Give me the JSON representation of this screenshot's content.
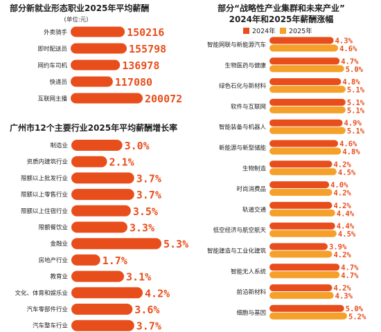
{
  "colors": {
    "primary": "#e84e1b",
    "secondary": "#f5a02a",
    "value": "#e84e1b"
  },
  "chart_data": [
    {
      "type": "bar",
      "orientation": "horizontal",
      "title": "部分新就业形态职业2025年平均薪酬",
      "unit_label": "(单位:元)",
      "categories": [
        "外卖骑手",
        "即时配送员",
        "网约车司机",
        "快递员",
        "互联网主播"
      ],
      "values": [
        150216,
        155798,
        136978,
        117080,
        200072
      ],
      "value_labels": [
        "150216",
        "155798",
        "136978",
        "117080",
        "200072"
      ]
    },
    {
      "type": "bar",
      "orientation": "horizontal",
      "title": "广州市12个主要行业2025年平均薪酬增长率",
      "categories": [
        "制造业",
        "资质内建筑行业",
        "限额以上批发行业",
        "限额以上零售行业",
        "限额以上住宿行业",
        "限额餐饮业",
        "金融业",
        "房地产行业",
        "教育业",
        "文化、体育和娱乐业",
        "汽车零部件行业",
        "汽车整车行业"
      ],
      "values": [
        3.0,
        2.1,
        3.7,
        3.7,
        3.5,
        3.3,
        5.3,
        1.7,
        3.1,
        4.2,
        3.6,
        3.7
      ],
      "value_labels": [
        "3.0%",
        "2.1%",
        "3.7%",
        "3.7%",
        "3.5%",
        "3.3%",
        "5.3%",
        "1.7%",
        "3.1%",
        "4.2%",
        "3.6%",
        "3.7%"
      ]
    },
    {
      "type": "bar",
      "orientation": "horizontal",
      "title": "部分“战略性产业集群和未来产业”",
      "subtitle": "2024年和2025年薪酬涨幅",
      "categories": [
        "智能网联与新能源汽车",
        "生物医药与健康",
        "绿色石化与新材料",
        "软件与互联网",
        "智能装备与机器人",
        "新能源与新型储能",
        "生物制造",
        "时尚消费品",
        "轨道交通",
        "低空经济与航空航天",
        "智能建造与工业化建筑",
        "智能无人系统",
        "前沿新材料",
        "细胞与基因"
      ],
      "series": [
        {
          "name": "2024年",
          "values": [
            4.3,
            4.7,
            4.8,
            5.1,
            4.9,
            4.6,
            4.2,
            4.0,
            4.2,
            4.4,
            3.9,
            4.7,
            4.2,
            5.0
          ],
          "labels": [
            "4.3%",
            "4.7%",
            "4.8%",
            "5.1%",
            "4.9%",
            "4.6%",
            "4.2%",
            "4.0%",
            "4.2%",
            "4.4%",
            "3.9%",
            "4.7%",
            "4.2%",
            "5.0%"
          ]
        },
        {
          "name": "2025年",
          "values": [
            4.6,
            5.0,
            5.1,
            5.1,
            5.1,
            4.8,
            4.5,
            4.2,
            4.4,
            4.5,
            4.2,
            4.7,
            4.3,
            5.2
          ],
          "labels": [
            "4.6%",
            "5.0%",
            "5.1%",
            "5.1%",
            "5.1%",
            "4.8%",
            "4.5%",
            "4.2%",
            "4.4%",
            "4.5%",
            "4.2%",
            "4.7%",
            "4.3%",
            "5.2%"
          ]
        }
      ]
    }
  ]
}
